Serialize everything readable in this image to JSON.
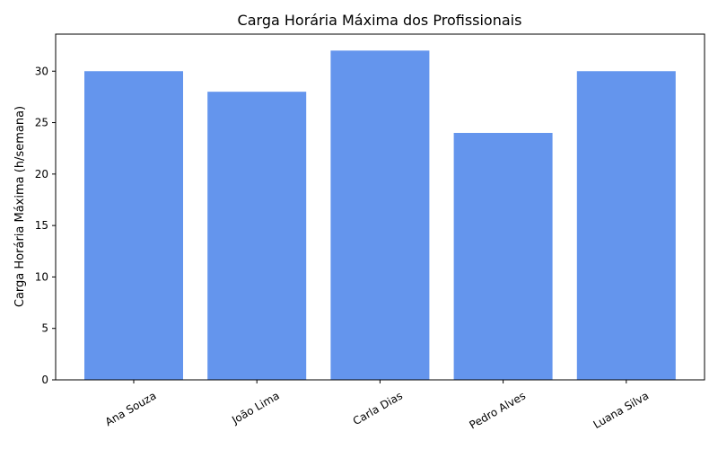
{
  "chart_data": {
    "type": "bar",
    "title": "Carga Horária Máxima dos Profissionais",
    "xlabel": "",
    "ylabel": "Carga Horária Máxima (h/semana)",
    "categories": [
      "Ana Souza",
      "João Lima",
      "Carla Dias",
      "Pedro Alves",
      "Luana Silva"
    ],
    "values": [
      30,
      28,
      32,
      24,
      30
    ],
    "ylim": [
      0,
      33.6
    ],
    "yticks": [
      0,
      5,
      10,
      15,
      20,
      25,
      30
    ],
    "bar_color": "#6495ed",
    "grid": false,
    "legend": "none",
    "xtick_rotation_deg": 30
  }
}
